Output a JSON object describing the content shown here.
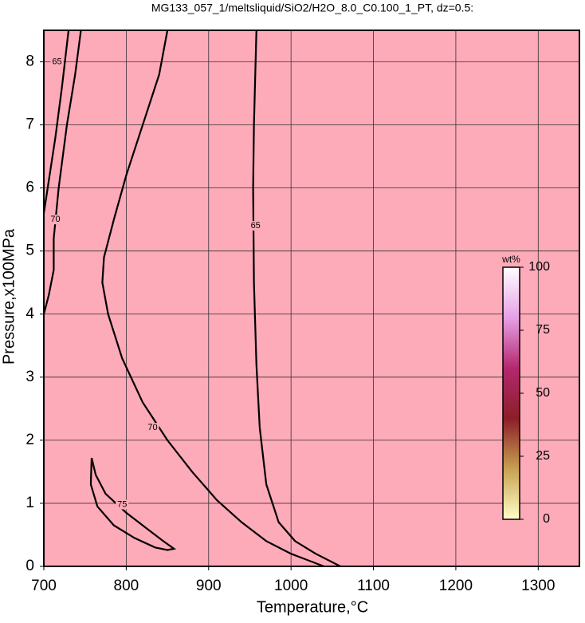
{
  "chart_data": {
    "type": "contour",
    "title": "MG133_057_1/meltsliquid/SiO2/H2O_8.0_C0.100_1_PT, dz=0.5:",
    "x_label": "Temperature,°C",
    "y_label": "Pressure,x100MPa",
    "xlim": [
      700,
      1350
    ],
    "ylim": [
      0,
      8.5
    ],
    "xticks": [
      700,
      800,
      900,
      1000,
      1100,
      1200,
      1300
    ],
    "yticks": [
      0,
      1,
      2,
      3,
      4,
      5,
      6,
      7,
      8
    ],
    "grid": true,
    "background": "#fdaab9",
    "contours": [
      {
        "level": 65,
        "x": [
          958,
          955,
          954,
          955,
          958,
          962,
          970,
          985,
          1005,
          1030,
          1060
        ],
        "y": [
          8.5,
          7,
          6,
          4.5,
          3.2,
          2.2,
          1.3,
          0.7,
          0.4,
          0.2,
          0
        ],
        "label_at": [
          957,
          5.4
        ]
      },
      {
        "level": 70,
        "x": [
          850,
          840,
          820,
          800,
          785,
          773,
          771,
          778,
          795,
          820,
          850,
          880,
          910,
          940,
          970,
          1000,
          1040
        ],
        "y": [
          8.5,
          7.8,
          7,
          6.2,
          5.5,
          4.9,
          4.5,
          4,
          3.3,
          2.6,
          2,
          1.5,
          1.05,
          0.7,
          0.4,
          0.2,
          0
        ],
        "label_at": [
          832,
          2.2
        ]
      },
      {
        "level": 75,
        "x": [
          758,
          763,
          775,
          800,
          825,
          845,
          858,
          850,
          835,
          810,
          785,
          765,
          757,
          758
        ],
        "y": [
          1.72,
          1.45,
          1.15,
          0.85,
          0.6,
          0.4,
          0.28,
          0.26,
          0.3,
          0.45,
          0.65,
          0.95,
          1.3,
          1.72
        ],
        "label_at": [
          795,
          0.98
        ]
      },
      {
        "level": 70,
        "x": [
          745,
          738,
          728,
          718,
          712,
          712,
          706,
          700
        ],
        "y": [
          8.5,
          7.8,
          7,
          6,
          5.2,
          4.7,
          4.3,
          4
        ],
        "label_at": [
          714,
          5.5
        ]
      },
      {
        "level": 65,
        "x": [
          730,
          722,
          714,
          707,
          700
        ],
        "y": [
          8.5,
          7.6,
          6.8,
          6.2,
          5.6
        ],
        "label_at": [
          716,
          8
        ]
      }
    ],
    "colorbar": {
      "title": "wt%",
      "lim": [
        0,
        100
      ],
      "ticks": [
        0,
        25,
        50,
        75,
        100
      ],
      "colors": [
        "#ffffc8",
        "#c8a050",
        "#8c1e28",
        "#b4286e",
        "#e6a0e6",
        "#ffffff"
      ]
    }
  }
}
